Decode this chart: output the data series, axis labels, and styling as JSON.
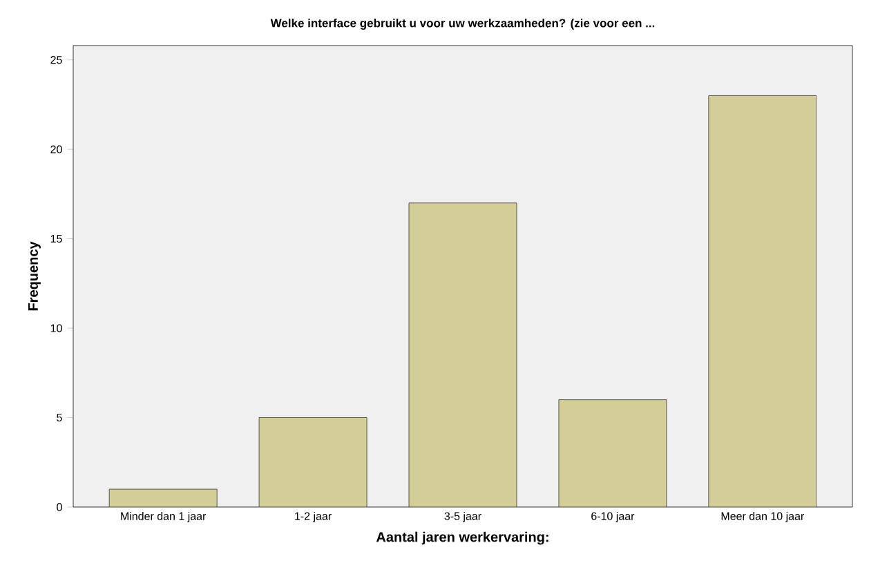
{
  "chart_data": {
    "type": "bar",
    "title": "Welke interface gebruikt u voor uw werkzaamheden? (zie voor een ...",
    "categories": [
      "Minder dan 1 jaar",
      "1-2 jaar",
      "3-5 jaar",
      "6-10 jaar",
      "Meer dan 10 jaar"
    ],
    "values": [
      1,
      5,
      17,
      6,
      23
    ],
    "color": "#d3ce98",
    "xlabel": "Aantal jaren werkervaring:",
    "ylabel": "Frequency",
    "ylim": [
      0,
      25.8
    ],
    "yticks": [
      0,
      5,
      10,
      15,
      20,
      25
    ]
  }
}
